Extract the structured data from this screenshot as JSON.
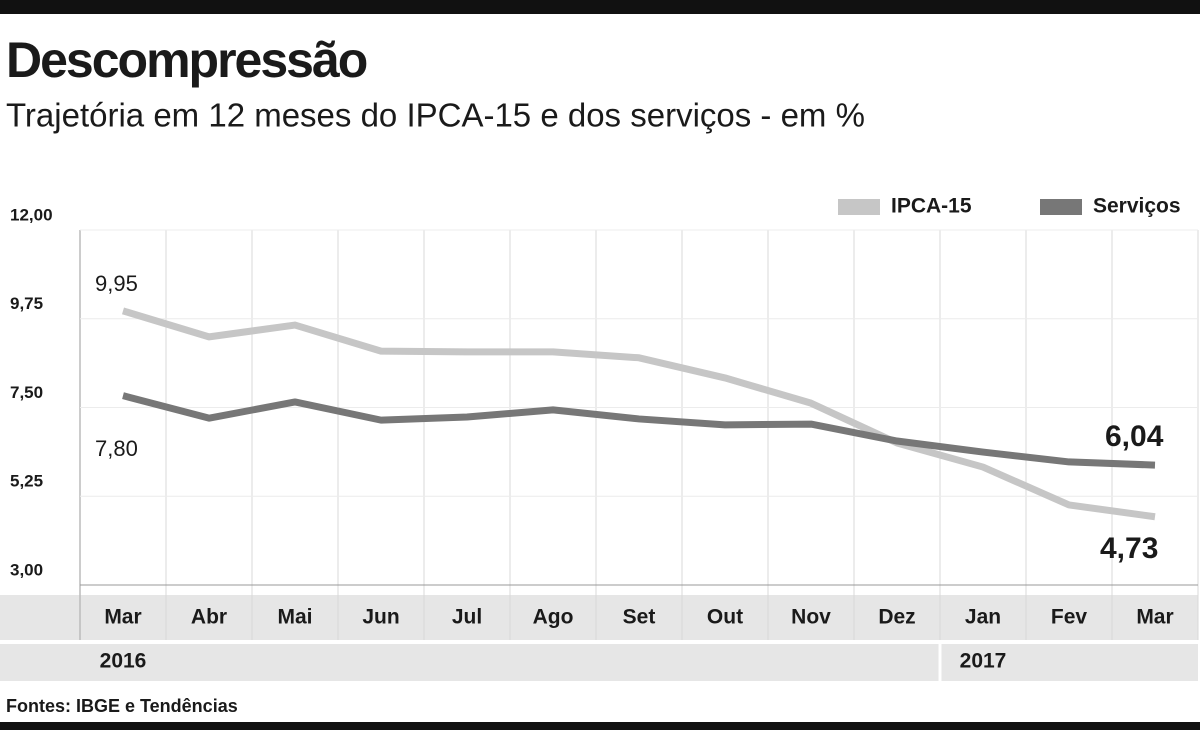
{
  "chart_data": {
    "type": "line",
    "title": "Descompressão",
    "subtitle": "Trajetória em 12 meses do IPCA-15 e dos serviços - em %",
    "categories": [
      "Mar",
      "Abr",
      "Mai",
      "Jun",
      "Jul",
      "Ago",
      "Set",
      "Out",
      "Nov",
      "Dez",
      "Jan",
      "Fev",
      "Mar"
    ],
    "years": [
      "2016",
      "2017"
    ],
    "series": [
      {
        "name": "IPCA-15",
        "color": "#c6c6c6",
        "values": [
          9.95,
          9.29,
          9.59,
          8.93,
          8.91,
          8.91,
          8.76,
          8.25,
          7.61,
          6.6,
          5.99,
          5.03,
          4.73
        ],
        "value_labels": [
          "9,95",
          null,
          null,
          null,
          null,
          null,
          null,
          null,
          null,
          null,
          null,
          null,
          "4,73"
        ]
      },
      {
        "name": "Serviços",
        "color": "#777777",
        "values": [
          7.8,
          7.23,
          7.64,
          7.18,
          7.26,
          7.44,
          7.21,
          7.06,
          7.08,
          6.65,
          6.37,
          6.12,
          6.04
        ],
        "value_labels": [
          "7,80",
          null,
          null,
          null,
          null,
          null,
          null,
          null,
          null,
          null,
          null,
          null,
          "6,04"
        ]
      }
    ],
    "ylim": [
      3,
      12
    ],
    "yticks": [
      {
        "value": 3,
        "label": "3,00"
      },
      {
        "value": 5.25,
        "label": "5,25"
      },
      {
        "value": 7.5,
        "label": "7,50"
      },
      {
        "value": 9.75,
        "label": "9,75"
      },
      {
        "value": 12,
        "label": "12,00"
      }
    ],
    "source": "Fontes: IBGE e Tendências"
  }
}
